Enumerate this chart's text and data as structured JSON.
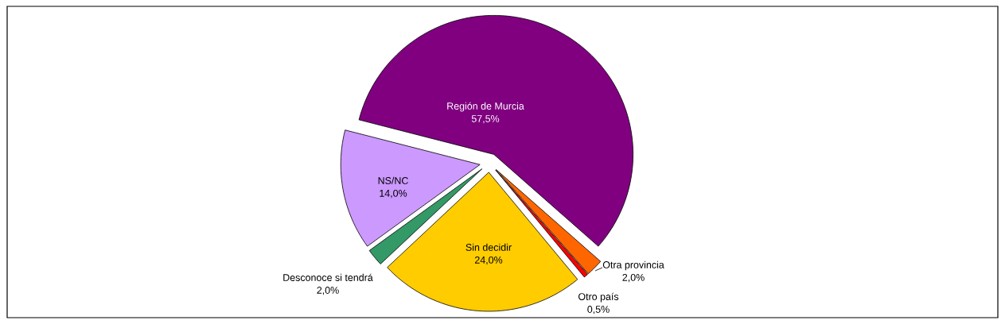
{
  "chart_data": {
    "type": "pie",
    "categories": [
      "Región de Murcia",
      "Otra provincia",
      "Otro país",
      "Sin decidir",
      "Desconoce si tendrá",
      "NS/NC"
    ],
    "values": [
      57.5,
      2.0,
      0.5,
      24.0,
      2.0,
      14.0
    ],
    "value_labels": [
      "57,5%",
      "2,0%",
      "0,5%",
      "24,0%",
      "2,0%",
      "14,0%"
    ],
    "colors": [
      "#800080",
      "#ff6600",
      "#ff0000",
      "#ffcc00",
      "#339966",
      "#cc99ff"
    ]
  }
}
